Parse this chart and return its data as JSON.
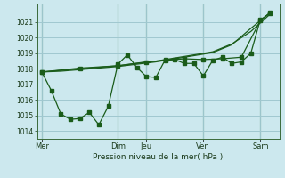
{
  "background_color": "#cce8ee",
  "grid_color": "#a0c8d0",
  "line_color": "#1a5c1a",
  "marker_color": "#1a5c1a",
  "xlabel": "Pression niveau de la mer( hPa )",
  "ylim": [
    1013.5,
    1022.2
  ],
  "yticks": [
    1014,
    1015,
    1016,
    1017,
    1018,
    1019,
    1020,
    1021
  ],
  "x_day_labels": [
    "Mer",
    "Dim",
    "Jeu",
    "Ven",
    "Sam"
  ],
  "x_day_positions": [
    0,
    8,
    11,
    17,
    23
  ],
  "vline_positions": [
    0,
    8,
    11,
    17,
    23
  ],
  "xlim": [
    -0.5,
    25
  ],
  "series1_x": [
    0,
    1,
    2,
    3,
    4,
    5,
    6,
    7,
    8,
    9,
    10,
    11,
    12,
    13,
    14,
    15,
    16,
    17,
    18,
    19,
    20,
    21,
    22,
    23,
    24
  ],
  "series1_y": [
    1017.8,
    1016.6,
    1015.1,
    1014.75,
    1014.8,
    1015.2,
    1014.4,
    1015.6,
    1018.3,
    1018.9,
    1018.1,
    1017.5,
    1017.45,
    1018.6,
    1018.6,
    1018.35,
    1018.35,
    1017.55,
    1018.55,
    1018.75,
    1018.35,
    1018.45,
    1019.0,
    1021.15,
    1021.55
  ],
  "series2_x": [
    0,
    2,
    4,
    6,
    8,
    10,
    12,
    14,
    16,
    18,
    20,
    22,
    24
  ],
  "series2_y": [
    1017.8,
    1017.9,
    1018.0,
    1018.1,
    1018.2,
    1018.35,
    1018.5,
    1018.7,
    1018.9,
    1019.1,
    1019.6,
    1020.4,
    1021.5
  ],
  "series3_x": [
    0,
    2,
    4,
    6,
    8,
    10,
    12,
    14,
    16,
    18,
    20,
    22,
    24
  ],
  "series3_y": [
    1017.8,
    1017.85,
    1017.95,
    1018.05,
    1018.15,
    1018.3,
    1018.45,
    1018.65,
    1018.85,
    1019.05,
    1019.55,
    1020.6,
    1021.6
  ],
  "series4_x": [
    0,
    4,
    8,
    11,
    13,
    15,
    17,
    19,
    21,
    23,
    24
  ],
  "series4_y": [
    1017.8,
    1018.05,
    1018.2,
    1018.45,
    1018.55,
    1018.65,
    1018.6,
    1018.65,
    1018.75,
    1021.1,
    1021.6
  ]
}
